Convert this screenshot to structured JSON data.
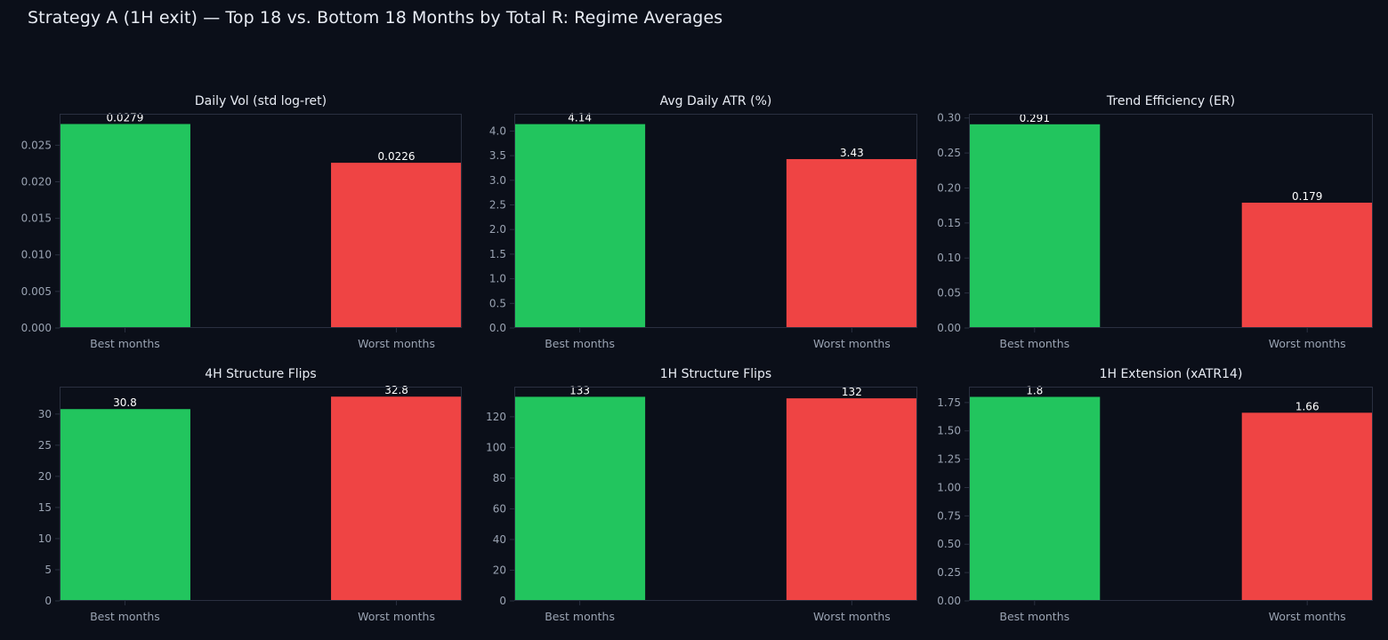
{
  "figure_title": "Strategy A (1H exit) — Top 18 vs. Bottom 18 Months by Total R: Regime Averages",
  "colors": {
    "background": "#0b0f19",
    "frame": "#2a3040",
    "text": "#e8ecf4",
    "tick_text": "#9aa3b2",
    "best": "#22c55e",
    "worst": "#ef4444",
    "value_label": "#ffffff"
  },
  "chart_data": [
    {
      "type": "bar",
      "title": "Daily Vol (std log-ret)",
      "categories": [
        "Best months",
        "Worst months"
      ],
      "values": [
        0.0279,
        0.0226
      ],
      "value_labels": [
        "0.0279",
        "0.0226"
      ],
      "ylim": [
        0,
        0.0293
      ],
      "yticks": [
        0.0,
        0.005,
        0.01,
        0.015,
        0.02,
        0.025
      ],
      "ytick_labels": [
        "0.000",
        "0.005",
        "0.010",
        "0.015",
        "0.020",
        "0.025"
      ],
      "xlabel": "",
      "ylabel": "",
      "grid": false
    },
    {
      "type": "bar",
      "title": "Avg Daily ATR (%)",
      "categories": [
        "Best months",
        "Worst months"
      ],
      "values": [
        4.14,
        3.43
      ],
      "value_labels": [
        "4.14",
        "3.43"
      ],
      "ylim": [
        0,
        4.35
      ],
      "yticks": [
        0.0,
        0.5,
        1.0,
        1.5,
        2.0,
        2.5,
        3.0,
        3.5,
        4.0
      ],
      "ytick_labels": [
        "0.0",
        "0.5",
        "1.0",
        "1.5",
        "2.0",
        "2.5",
        "3.0",
        "3.5",
        "4.0"
      ],
      "xlabel": "",
      "ylabel": "",
      "grid": false
    },
    {
      "type": "bar",
      "title": "Trend Efficiency (ER)",
      "categories": [
        "Best months",
        "Worst months"
      ],
      "values": [
        0.291,
        0.179
      ],
      "value_labels": [
        "0.291",
        "0.179"
      ],
      "ylim": [
        0,
        0.306
      ],
      "yticks": [
        0.0,
        0.05,
        0.1,
        0.15,
        0.2,
        0.25,
        0.3
      ],
      "ytick_labels": [
        "0.00",
        "0.05",
        "0.10",
        "0.15",
        "0.20",
        "0.25",
        "0.30"
      ],
      "xlabel": "",
      "ylabel": "",
      "grid": false
    },
    {
      "type": "bar",
      "title": "4H Structure Flips",
      "categories": [
        "Best months",
        "Worst months"
      ],
      "values": [
        30.8,
        32.8
      ],
      "value_labels": [
        "30.8",
        "32.8"
      ],
      "ylim": [
        0,
        34.4
      ],
      "yticks": [
        0,
        5,
        10,
        15,
        20,
        25,
        30
      ],
      "ytick_labels": [
        "0",
        "5",
        "10",
        "15",
        "20",
        "25",
        "30"
      ],
      "xlabel": "",
      "ylabel": "",
      "grid": false
    },
    {
      "type": "bar",
      "title": "1H Structure Flips",
      "categories": [
        "Best months",
        "Worst months"
      ],
      "values": [
        133,
        132
      ],
      "value_labels": [
        "133",
        "132"
      ],
      "ylim": [
        0,
        139.6
      ],
      "yticks": [
        0,
        20,
        40,
        60,
        80,
        100,
        120
      ],
      "ytick_labels": [
        "0",
        "20",
        "40",
        "60",
        "80",
        "100",
        "120"
      ],
      "xlabel": "",
      "ylabel": "",
      "grid": false
    },
    {
      "type": "bar",
      "title": "1H Extension (xATR14)",
      "categories": [
        "Best months",
        "Worst months"
      ],
      "values": [
        1.8,
        1.66
      ],
      "value_labels": [
        "1.8",
        "1.66"
      ],
      "ylim": [
        0,
        1.89
      ],
      "yticks": [
        0.0,
        0.25,
        0.5,
        0.75,
        1.0,
        1.25,
        1.5,
        1.75
      ],
      "ytick_labels": [
        "0.00",
        "0.25",
        "0.50",
        "0.75",
        "1.00",
        "1.25",
        "1.50",
        "1.75"
      ],
      "xlabel": "",
      "ylabel": "",
      "grid": false
    }
  ]
}
